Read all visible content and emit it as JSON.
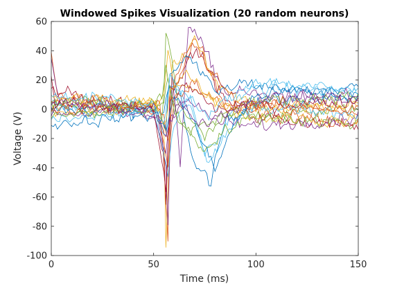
{
  "chart_data": {
    "type": "line",
    "title": "Windowed Spikes Visualization (20 random neurons)",
    "xlabel": "Time (ms)",
    "ylabel": "Voltage (V)",
    "xlim": [
      0,
      150
    ],
    "ylim": [
      -100,
      60
    ],
    "x_ticks": [
      0,
      50,
      100,
      150
    ],
    "y_ticks": [
      -100,
      -80,
      -60,
      -40,
      -20,
      0,
      20,
      40,
      60
    ],
    "grid": false,
    "legend": "none",
    "x_sampling": {
      "start": 0,
      "step": 1,
      "count": 151
    },
    "series": [
      {
        "color": "#0072BD",
        "waveform": [
          {
            "t": 0,
            "v": 2
          },
          {
            "t": 48,
            "v": 0
          },
          {
            "t": 55,
            "v": -3
          },
          {
            "t": 58,
            "v": 15
          },
          {
            "t": 63,
            "v": 8
          },
          {
            "t": 70,
            "v": -38
          },
          {
            "t": 78,
            "v": -50
          },
          {
            "t": 85,
            "v": -8
          },
          {
            "t": 100,
            "v": 5
          },
          {
            "t": 150,
            "v": 8
          }
        ],
        "noise": 9
      },
      {
        "color": "#D95319",
        "waveform": [
          {
            "t": 0,
            "v": 35
          },
          {
            "t": 3,
            "v": 8
          },
          {
            "t": 50,
            "v": 0
          },
          {
            "t": 53,
            "v": 8
          },
          {
            "t": 56,
            "v": -62
          },
          {
            "t": 57,
            "v": -90
          },
          {
            "t": 58,
            "v": 10
          },
          {
            "t": 62,
            "v": 18
          },
          {
            "t": 70,
            "v": 52
          },
          {
            "t": 78,
            "v": 22
          },
          {
            "t": 85,
            "v": 0
          },
          {
            "t": 150,
            "v": -10
          }
        ],
        "noise": 9
      },
      {
        "color": "#EDB120",
        "waveform": [
          {
            "t": 0,
            "v": 5
          },
          {
            "t": 50,
            "v": 3
          },
          {
            "t": 55,
            "v": -6
          },
          {
            "t": 56,
            "v": -97
          },
          {
            "t": 57,
            "v": -55
          },
          {
            "t": 59,
            "v": 28
          },
          {
            "t": 62,
            "v": 30
          },
          {
            "t": 70,
            "v": 50
          },
          {
            "t": 80,
            "v": 20
          },
          {
            "t": 100,
            "v": 0
          },
          {
            "t": 150,
            "v": 5
          }
        ],
        "noise": 8
      },
      {
        "color": "#7E2F8E",
        "waveform": [
          {
            "t": 0,
            "v": 30
          },
          {
            "t": 4,
            "v": 5
          },
          {
            "t": 52,
            "v": -3
          },
          {
            "t": 56,
            "v": -40
          },
          {
            "t": 57,
            "v": -78
          },
          {
            "t": 59,
            "v": 22
          },
          {
            "t": 63,
            "v": -38
          },
          {
            "t": 67,
            "v": 60
          },
          {
            "t": 71,
            "v": 50
          },
          {
            "t": 85,
            "v": 12
          },
          {
            "t": 150,
            "v": 4
          }
        ],
        "noise": 9
      },
      {
        "color": "#77AC30",
        "waveform": [
          {
            "t": 0,
            "v": 0
          },
          {
            "t": 50,
            "v": 2
          },
          {
            "t": 54,
            "v": -10
          },
          {
            "t": 55,
            "v": 10
          },
          {
            "t": 56,
            "v": 52
          },
          {
            "t": 58,
            "v": 40
          },
          {
            "t": 62,
            "v": 5
          },
          {
            "t": 75,
            "v": -20
          },
          {
            "t": 85,
            "v": -5
          },
          {
            "t": 150,
            "v": 0
          }
        ],
        "noise": 8
      },
      {
        "color": "#4DBEEE",
        "waveform": [
          {
            "t": 0,
            "v": 3
          },
          {
            "t": 50,
            "v": 2
          },
          {
            "t": 56,
            "v": -20
          },
          {
            "t": 60,
            "v": 18
          },
          {
            "t": 68,
            "v": 0
          },
          {
            "t": 75,
            "v": -30
          },
          {
            "t": 82,
            "v": -20
          },
          {
            "t": 90,
            "v": 5
          },
          {
            "t": 100,
            "v": 15
          },
          {
            "t": 150,
            "v": 12
          }
        ],
        "noise": 8
      },
      {
        "color": "#A2142F",
        "waveform": [
          {
            "t": 0,
            "v": 12
          },
          {
            "t": 50,
            "v": 2
          },
          {
            "t": 55,
            "v": -30
          },
          {
            "t": 56,
            "v": -68
          },
          {
            "t": 58,
            "v": 12
          },
          {
            "t": 65,
            "v": 30
          },
          {
            "t": 72,
            "v": 40
          },
          {
            "t": 85,
            "v": 5
          },
          {
            "t": 100,
            "v": -5
          },
          {
            "t": 150,
            "v": -12
          }
        ],
        "noise": 9
      },
      {
        "color": "#0072BD",
        "waveform": [
          {
            "t": 0,
            "v": 0
          },
          {
            "t": 50,
            "v": 0
          },
          {
            "t": 56,
            "v": -12
          },
          {
            "t": 58,
            "v": 25
          },
          {
            "t": 66,
            "v": 35
          },
          {
            "t": 74,
            "v": 25
          },
          {
            "t": 82,
            "v": 10
          },
          {
            "t": 92,
            "v": 18
          },
          {
            "t": 150,
            "v": 8
          }
        ],
        "noise": 8
      },
      {
        "color": "#D95319",
        "waveform": [
          {
            "t": 0,
            "v": 6
          },
          {
            "t": 50,
            "v": 0
          },
          {
            "t": 55,
            "v": -20
          },
          {
            "t": 57,
            "v": -40
          },
          {
            "t": 60,
            "v": 8
          },
          {
            "t": 70,
            "v": 18
          },
          {
            "t": 80,
            "v": 5
          },
          {
            "t": 150,
            "v": -3
          }
        ],
        "noise": 8
      },
      {
        "color": "#EDB120",
        "waveform": [
          {
            "t": 0,
            "v": -3
          },
          {
            "t": 50,
            "v": 3
          },
          {
            "t": 55,
            "v": 8
          },
          {
            "t": 57,
            "v": 42
          },
          {
            "t": 60,
            "v": 20
          },
          {
            "t": 72,
            "v": 10
          },
          {
            "t": 90,
            "v": 0
          },
          {
            "t": 150,
            "v": 3
          }
        ],
        "noise": 7
      },
      {
        "color": "#7E2F8E",
        "waveform": [
          {
            "t": 0,
            "v": -2
          },
          {
            "t": 50,
            "v": -4
          },
          {
            "t": 56,
            "v": -30
          },
          {
            "t": 58,
            "v": -5
          },
          {
            "t": 65,
            "v": 8
          },
          {
            "t": 80,
            "v": -8
          },
          {
            "t": 100,
            "v": -12
          },
          {
            "t": 150,
            "v": -5
          }
        ],
        "noise": 8
      },
      {
        "color": "#77AC30",
        "waveform": [
          {
            "t": 0,
            "v": 5
          },
          {
            "t": 50,
            "v": 5
          },
          {
            "t": 54,
            "v": 10
          },
          {
            "t": 56,
            "v": 30
          },
          {
            "t": 60,
            "v": 0
          },
          {
            "t": 68,
            "v": -15
          },
          {
            "t": 78,
            "v": -10
          },
          {
            "t": 95,
            "v": 5
          },
          {
            "t": 150,
            "v": 10
          }
        ],
        "noise": 8
      },
      {
        "color": "#4DBEEE",
        "waveform": [
          {
            "t": 0,
            "v": -8
          },
          {
            "t": 50,
            "v": -2
          },
          {
            "t": 57,
            "v": -45
          },
          {
            "t": 60,
            "v": -10
          },
          {
            "t": 68,
            "v": 10
          },
          {
            "t": 76,
            "v": -38
          },
          {
            "t": 84,
            "v": -22
          },
          {
            "t": 95,
            "v": 0
          },
          {
            "t": 150,
            "v": -2
          }
        ],
        "noise": 8
      },
      {
        "color": "#A2142F",
        "waveform": [
          {
            "t": 0,
            "v": 20
          },
          {
            "t": 2,
            "v": 4
          },
          {
            "t": 50,
            "v": 0
          },
          {
            "t": 56,
            "v": -55
          },
          {
            "t": 58,
            "v": 5
          },
          {
            "t": 66,
            "v": 18
          },
          {
            "t": 80,
            "v": 0
          },
          {
            "t": 150,
            "v": 6
          }
        ],
        "noise": 8
      },
      {
        "color": "#0072BD",
        "waveform": [
          {
            "t": 0,
            "v": -10
          },
          {
            "t": 50,
            "v": -4
          },
          {
            "t": 56,
            "v": -15
          },
          {
            "t": 60,
            "v": 12
          },
          {
            "t": 70,
            "v": -10
          },
          {
            "t": 80,
            "v": -42
          },
          {
            "t": 88,
            "v": -12
          },
          {
            "t": 100,
            "v": 10
          },
          {
            "t": 150,
            "v": 15
          }
        ],
        "noise": 8
      },
      {
        "color": "#D95319",
        "waveform": [
          {
            "t": 0,
            "v": 0
          },
          {
            "t": 50,
            "v": 2
          },
          {
            "t": 55,
            "v": -5
          },
          {
            "t": 57,
            "v": -25
          },
          {
            "t": 60,
            "v": 20
          },
          {
            "t": 68,
            "v": 45
          },
          {
            "t": 76,
            "v": 30
          },
          {
            "t": 90,
            "v": 5
          },
          {
            "t": 150,
            "v": 0
          }
        ],
        "noise": 8
      },
      {
        "color": "#EDB120",
        "waveform": [
          {
            "t": 0,
            "v": 8
          },
          {
            "t": 50,
            "v": 5
          },
          {
            "t": 56,
            "v": -10
          },
          {
            "t": 58,
            "v": 15
          },
          {
            "t": 66,
            "v": 25
          },
          {
            "t": 78,
            "v": 8
          },
          {
            "t": 95,
            "v": -5
          },
          {
            "t": 150,
            "v": -8
          }
        ],
        "noise": 8
      },
      {
        "color": "#7E2F8E",
        "waveform": [
          {
            "t": 0,
            "v": 4
          },
          {
            "t": 50,
            "v": 0
          },
          {
            "t": 56,
            "v": -18
          },
          {
            "t": 62,
            "v": 5
          },
          {
            "t": 72,
            "v": -12
          },
          {
            "t": 80,
            "v": -5
          },
          {
            "t": 100,
            "v": 8
          },
          {
            "t": 150,
            "v": 10
          }
        ],
        "noise": 8
      },
      {
        "color": "#77AC30",
        "waveform": [
          {
            "t": 0,
            "v": -5
          },
          {
            "t": 50,
            "v": 0
          },
          {
            "t": 55,
            "v": 5
          },
          {
            "t": 57,
            "v": 18
          },
          {
            "t": 62,
            "v": -5
          },
          {
            "t": 74,
            "v": -28
          },
          {
            "t": 84,
            "v": -15
          },
          {
            "t": 100,
            "v": -5
          },
          {
            "t": 150,
            "v": -10
          }
        ],
        "noise": 8
      },
      {
        "color": "#4DBEEE",
        "waveform": [
          {
            "t": 0,
            "v": 10
          },
          {
            "t": 50,
            "v": 4
          },
          {
            "t": 55,
            "v": -8
          },
          {
            "t": 58,
            "v": 22
          },
          {
            "t": 64,
            "v": 12
          },
          {
            "t": 75,
            "v": -5
          },
          {
            "t": 90,
            "v": 10
          },
          {
            "t": 100,
            "v": 20
          },
          {
            "t": 150,
            "v": 12
          }
        ],
        "noise": 8
      }
    ]
  }
}
